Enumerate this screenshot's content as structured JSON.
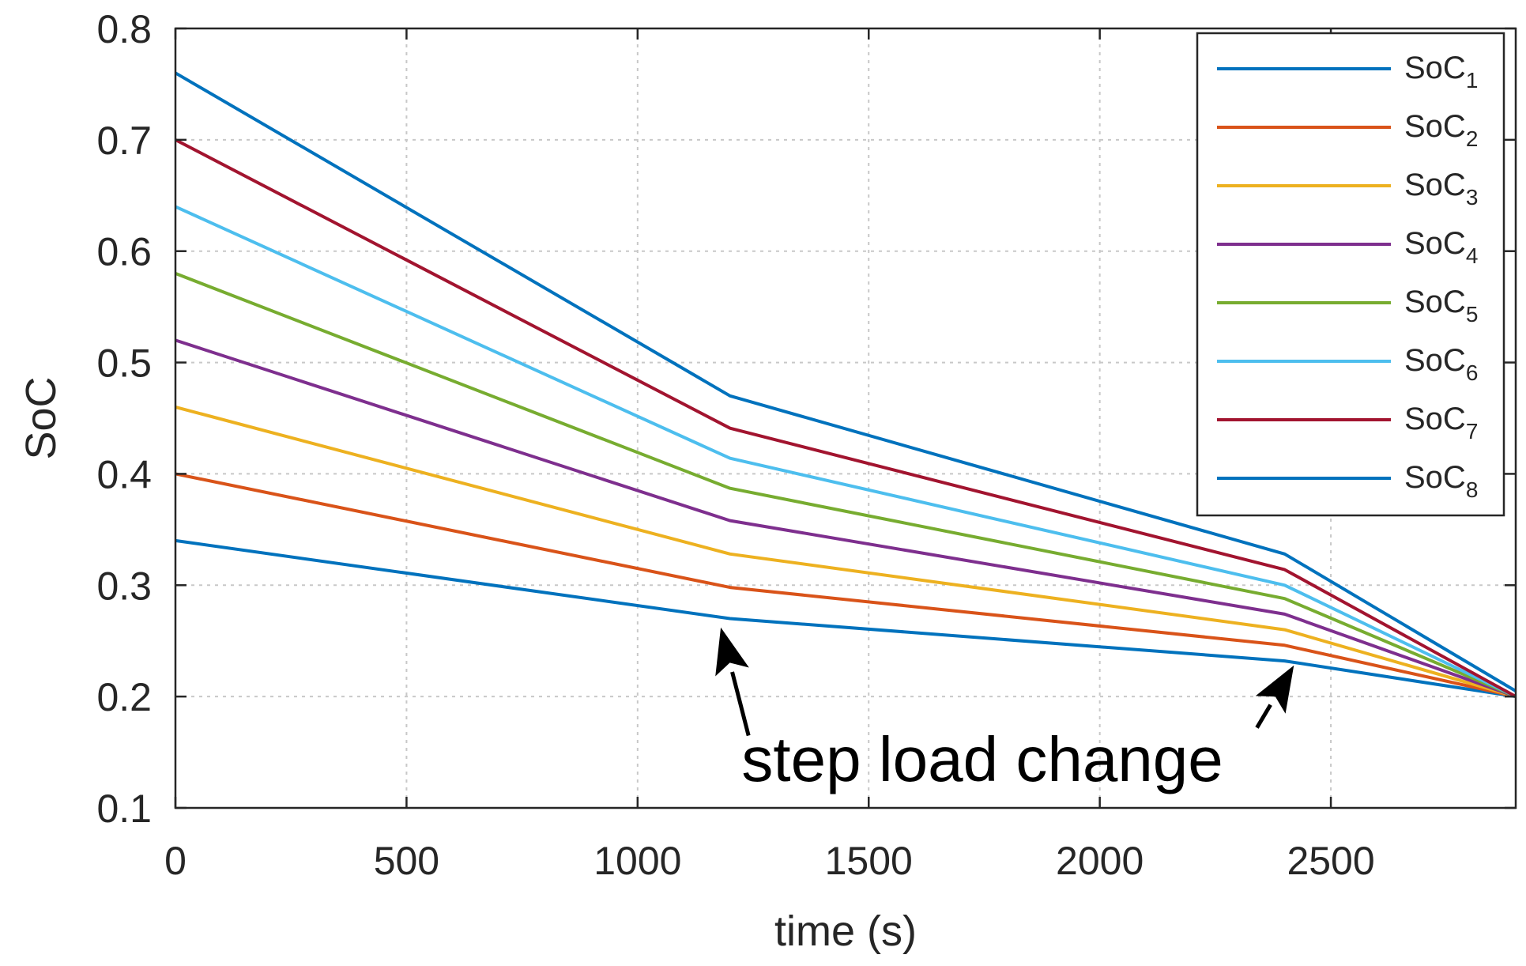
{
  "chart_data": {
    "type": "line",
    "title": "",
    "xlabel": "time (s)",
    "ylabel": "SoC",
    "xlim": [
      0,
      2900
    ],
    "ylim": [
      0.1,
      0.8
    ],
    "xticks": [
      0,
      500,
      1000,
      1500,
      2000,
      2500
    ],
    "yticks": [
      0.1,
      0.2,
      0.3,
      0.4,
      0.5,
      0.6,
      0.7,
      0.8
    ],
    "xtick_labels": [
      "0",
      "500",
      "1000",
      "1500",
      "2000",
      "2500"
    ],
    "ytick_labels": [
      "0.1",
      "0.2",
      "0.3",
      "0.4",
      "0.5",
      "0.6",
      "0.7",
      "0.8"
    ],
    "grid": true,
    "legend_position": "top-right",
    "x": [
      0,
      1200,
      2400,
      2900
    ],
    "series": [
      {
        "name": "SoC",
        "sub": "1",
        "color": "#0072BD",
        "values": [
          0.34,
          0.27,
          0.232,
          0.2
        ]
      },
      {
        "name": "SoC",
        "sub": "2",
        "color": "#D95319",
        "values": [
          0.4,
          0.298,
          0.246,
          0.2
        ]
      },
      {
        "name": "SoC",
        "sub": "3",
        "color": "#EDB120",
        "values": [
          0.46,
          0.328,
          0.26,
          0.2
        ]
      },
      {
        "name": "SoC",
        "sub": "4",
        "color": "#7E2F8E",
        "values": [
          0.52,
          0.358,
          0.274,
          0.2
        ]
      },
      {
        "name": "SoC",
        "sub": "5",
        "color": "#77AC30",
        "values": [
          0.58,
          0.387,
          0.288,
          0.2
        ]
      },
      {
        "name": "SoC",
        "sub": "6",
        "color": "#4DBEEE",
        "values": [
          0.64,
          0.414,
          0.3,
          0.2
        ]
      },
      {
        "name": "SoC",
        "sub": "7",
        "color": "#A2142F",
        "values": [
          0.7,
          0.441,
          0.314,
          0.2
        ]
      },
      {
        "name": "SoC",
        "sub": "8",
        "color": "#0072BD",
        "values": [
          0.76,
          0.47,
          0.328,
          0.205
        ]
      }
    ],
    "annotation": {
      "text": "step load change",
      "arrows": [
        {
          "from": [
            1240,
            0.165
          ],
          "to": [
            1180,
            0.262
          ]
        },
        {
          "from": [
            2340,
            0.172
          ],
          "to": [
            2420,
            0.228
          ]
        }
      ]
    }
  }
}
